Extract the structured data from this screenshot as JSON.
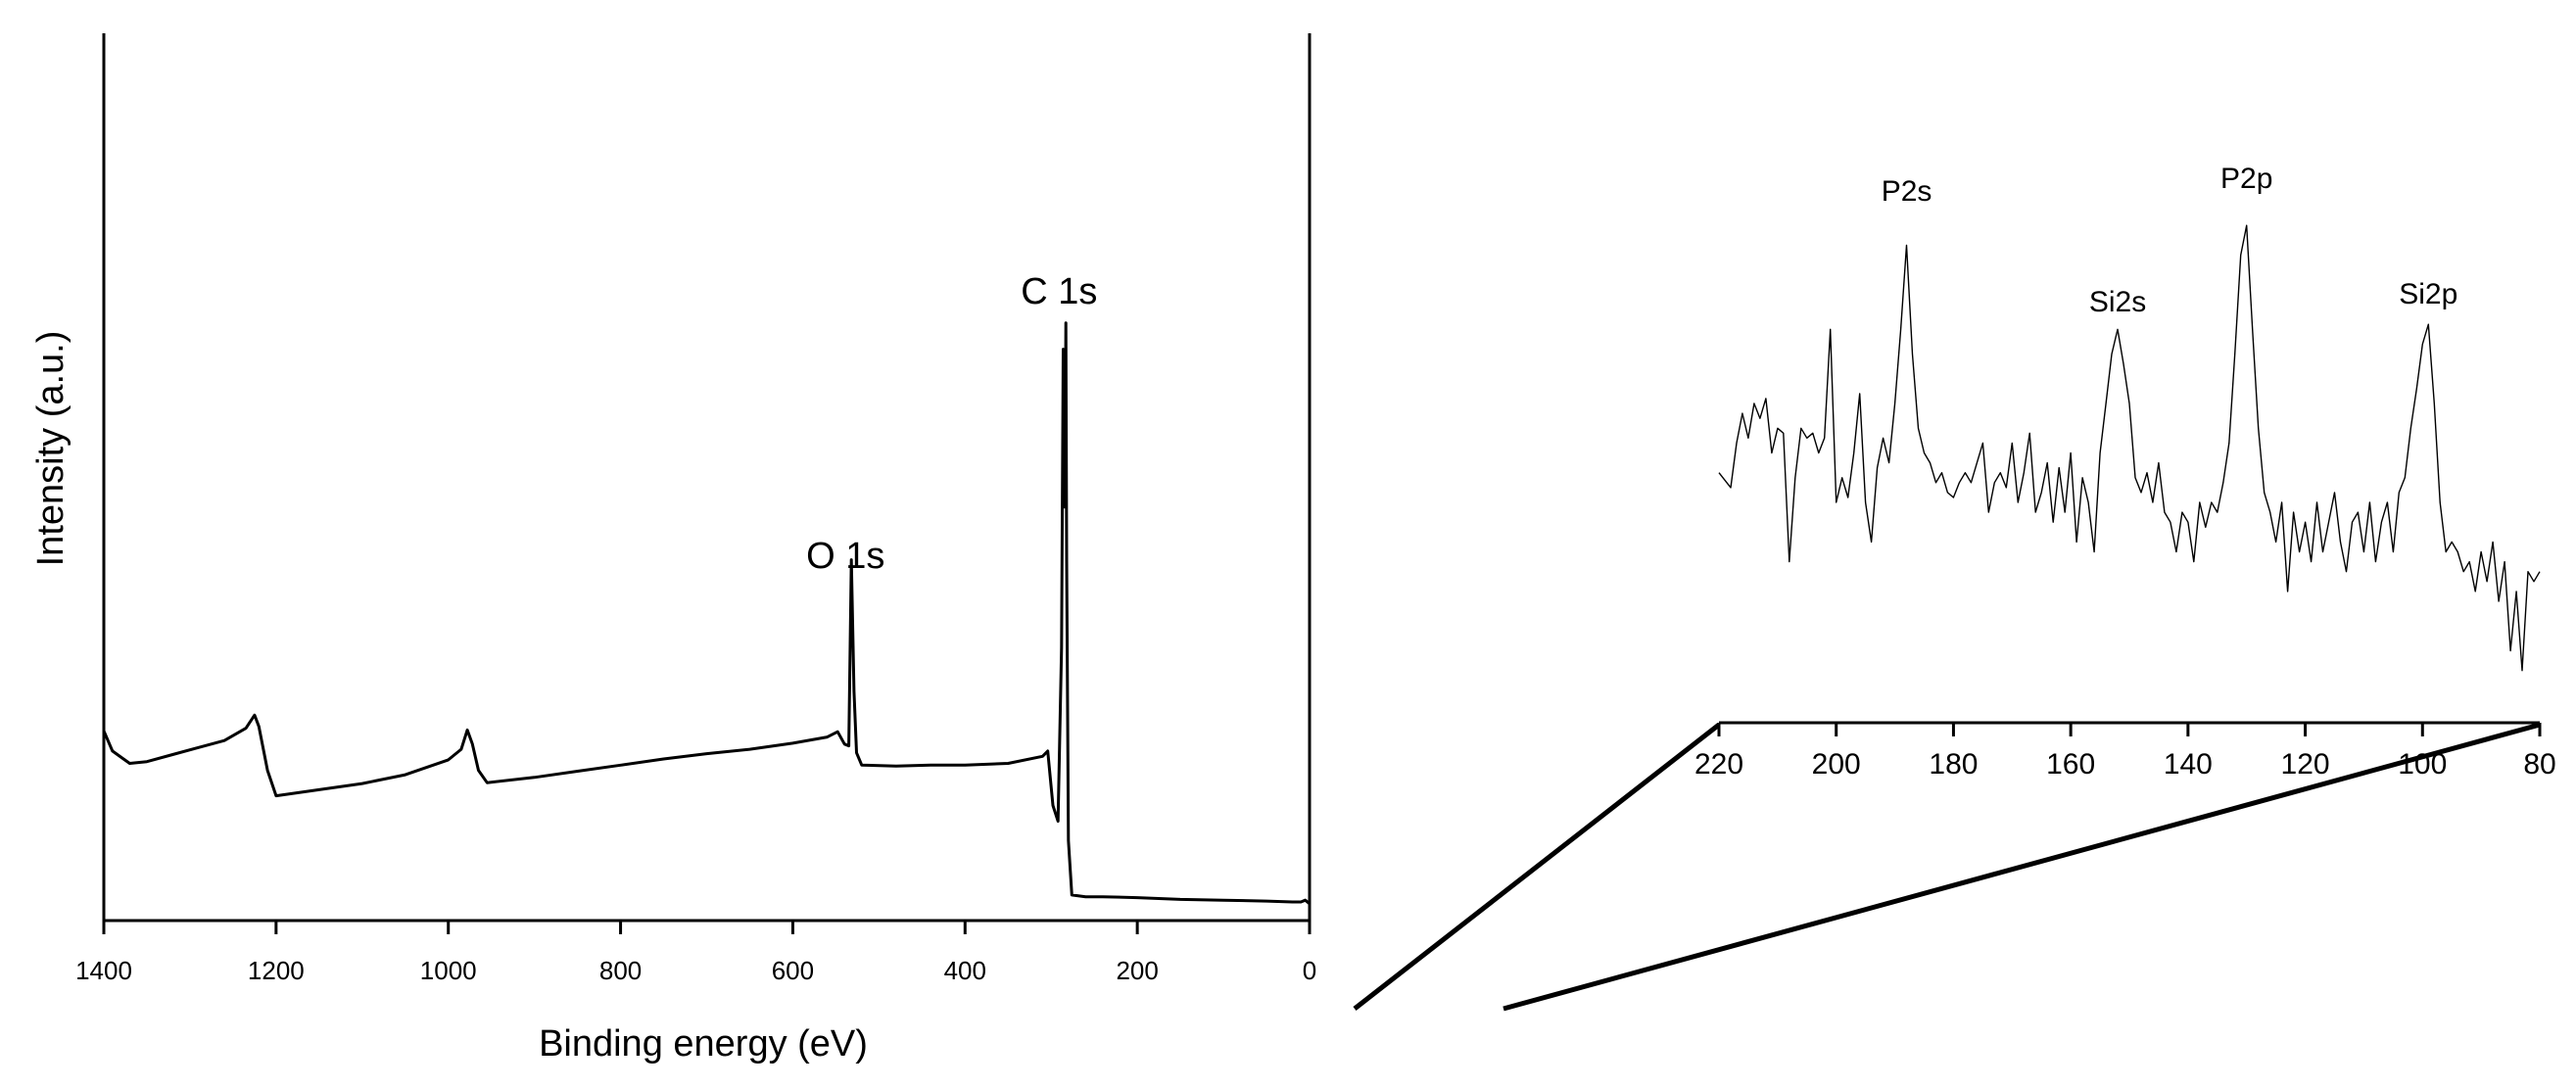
{
  "chart_data": [
    {
      "type": "line",
      "xlabel": "Binding energy (eV)",
      "ylabel": "Intensity (a.u.)",
      "xlim": [
        1400,
        0
      ],
      "ylim": [
        0,
        100
      ],
      "x_ticks": [
        "1400",
        "1200",
        "1000",
        "800",
        "600",
        "400",
        "200",
        "0"
      ],
      "grid": false,
      "series": [
        {
          "values": [
            [
              1400,
              20.5
            ],
            [
              1390,
              18.2
            ],
            [
              1370,
              16.8
            ],
            [
              1350,
              17.0
            ],
            [
              1320,
              17.8
            ],
            [
              1290,
              18.6
            ],
            [
              1260,
              19.4
            ],
            [
              1235,
              20.8
            ],
            [
              1225,
              22.3
            ],
            [
              1220,
              21.0
            ],
            [
              1210,
              16.0
            ],
            [
              1200,
              13.1
            ],
            [
              1150,
              13.8
            ],
            [
              1100,
              14.5
            ],
            [
              1050,
              15.5
            ],
            [
              1000,
              17.2
            ],
            [
              985,
              18.4
            ],
            [
              978,
              20.6
            ],
            [
              972,
              19.0
            ],
            [
              965,
              16.0
            ],
            [
              955,
              14.6
            ],
            [
              900,
              15.2
            ],
            [
              850,
              15.9
            ],
            [
              800,
              16.6
            ],
            [
              750,
              17.3
            ],
            [
              700,
              17.9
            ],
            [
              650,
              18.4
            ],
            [
              600,
              19.1
            ],
            [
              560,
              19.8
            ],
            [
              548,
              20.4
            ],
            [
              540,
              19.0
            ],
            [
              535,
              18.8
            ],
            [
              532,
              40.0
            ],
            [
              529,
              25.0
            ],
            [
              526,
              18.0
            ],
            [
              520,
              16.6
            ],
            [
              480,
              16.5
            ],
            [
              440,
              16.6
            ],
            [
              400,
              16.6
            ],
            [
              350,
              16.8
            ],
            [
              310,
              17.6
            ],
            [
              304,
              18.2
            ],
            [
              298,
              12.0
            ],
            [
              292,
              10.2
            ],
            [
              288,
              30.0
            ],
            [
              286,
              64.0
            ],
            [
              284,
              46.0
            ],
            [
              283,
              67.0
            ],
            [
              282,
              40.0
            ],
            [
              280,
              8.0
            ],
            [
              276,
              1.8
            ],
            [
              260,
              1.6
            ],
            [
              240,
              1.6
            ],
            [
              200,
              1.5
            ],
            [
              150,
              1.3
            ],
            [
              100,
              1.2
            ],
            [
              50,
              1.1
            ],
            [
              20,
              1.0
            ],
            [
              10,
              1.0
            ],
            [
              5,
              1.2
            ],
            [
              0,
              0.8
            ]
          ]
        }
      ],
      "annotations": [
        {
          "text": "O 1s",
          "x": 532
        },
        {
          "text": "C 1s",
          "x": 284
        }
      ]
    },
    {
      "type": "line",
      "xlim": [
        220,
        80
      ],
      "x_ticks": [
        "220",
        "200",
        "180",
        "160",
        "140",
        "120",
        "100",
        "80"
      ],
      "ylim": [
        0,
        100
      ],
      "grid": false,
      "series": [
        {
          "values": [
            [
              220,
              46
            ],
            [
              218,
              43
            ],
            [
              217,
              52
            ],
            [
              216,
              58
            ],
            [
              215,
              53
            ],
            [
              214,
              60
            ],
            [
              213,
              57
            ],
            [
              212,
              61
            ],
            [
              211,
              50
            ],
            [
              210,
              55
            ],
            [
              209,
              54
            ],
            [
              208,
              28
            ],
            [
              207,
              45
            ],
            [
              206,
              55
            ],
            [
              205,
              53
            ],
            [
              204,
              54
            ],
            [
              203,
              50
            ],
            [
              202,
              53
            ],
            [
              201,
              75
            ],
            [
              200,
              40
            ],
            [
              199,
              45
            ],
            [
              198,
              41
            ],
            [
              197,
              50
            ],
            [
              196,
              62
            ],
            [
              195,
              40
            ],
            [
              194,
              32
            ],
            [
              193,
              47
            ],
            [
              192,
              53
            ],
            [
              191,
              48
            ],
            [
              190,
              60
            ],
            [
              189,
              75
            ],
            [
              188,
              92
            ],
            [
              187,
              70
            ],
            [
              186,
              55
            ],
            [
              185,
              50
            ],
            [
              184,
              48
            ],
            [
              183,
              44
            ],
            [
              182,
              46
            ],
            [
              181,
              42
            ],
            [
              180,
              41
            ],
            [
              179,
              44
            ],
            [
              178,
              46
            ],
            [
              177,
              44
            ],
            [
              176,
              48
            ],
            [
              175,
              52
            ],
            [
              174,
              38
            ],
            [
              173,
              44
            ],
            [
              172,
              46
            ],
            [
              171,
              43
            ],
            [
              170,
              52
            ],
            [
              169,
              40
            ],
            [
              168,
              46
            ],
            [
              167,
              54
            ],
            [
              166,
              38
            ],
            [
              165,
              42
            ],
            [
              164,
              48
            ],
            [
              163,
              36
            ],
            [
              162,
              47
            ],
            [
              161,
              38
            ],
            [
              160,
              50
            ],
            [
              159,
              32
            ],
            [
              158,
              45
            ],
            [
              157,
              40
            ],
            [
              156,
              30
            ],
            [
              155,
              50
            ],
            [
              154,
              60
            ],
            [
              153,
              70
            ],
            [
              152,
              75
            ],
            [
              151,
              68
            ],
            [
              150,
              60
            ],
            [
              149,
              45
            ],
            [
              148,
              42
            ],
            [
              147,
              46
            ],
            [
              146,
              40
            ],
            [
              145,
              48
            ],
            [
              144,
              38
            ],
            [
              143,
              36
            ],
            [
              142,
              30
            ],
            [
              141,
              38
            ],
            [
              140,
              36
            ],
            [
              139,
              28
            ],
            [
              138,
              40
            ],
            [
              137,
              35
            ],
            [
              136,
              40
            ],
            [
              135,
              38
            ],
            [
              134,
              44
            ],
            [
              133,
              52
            ],
            [
              132,
              70
            ],
            [
              131,
              90
            ],
            [
              130,
              96
            ],
            [
              129,
              75
            ],
            [
              128,
              55
            ],
            [
              127,
              42
            ],
            [
              126,
              38
            ],
            [
              125,
              32
            ],
            [
              124,
              40
            ],
            [
              123,
              22
            ],
            [
              122,
              38
            ],
            [
              121,
              30
            ],
            [
              120,
              36
            ],
            [
              119,
              28
            ],
            [
              118,
              40
            ],
            [
              117,
              30
            ],
            [
              116,
              36
            ],
            [
              115,
              42
            ],
            [
              114,
              32
            ],
            [
              113,
              26
            ],
            [
              112,
              36
            ],
            [
              111,
              38
            ],
            [
              110,
              30
            ],
            [
              109,
              40
            ],
            [
              108,
              28
            ],
            [
              107,
              36
            ],
            [
              106,
              40
            ],
            [
              105,
              30
            ],
            [
              104,
              42
            ],
            [
              103,
              45
            ],
            [
              102,
              55
            ],
            [
              101,
              63
            ],
            [
              100,
              72
            ],
            [
              99,
              76
            ],
            [
              98,
              60
            ],
            [
              97,
              40
            ],
            [
              96,
              30
            ],
            [
              95,
              32
            ],
            [
              94,
              30
            ],
            [
              93,
              26
            ],
            [
              92,
              28
            ],
            [
              91,
              22
            ],
            [
              90,
              30
            ],
            [
              89,
              24
            ],
            [
              88,
              32
            ],
            [
              87,
              20
            ],
            [
              86,
              28
            ],
            [
              85,
              10
            ],
            [
              84,
              22
            ],
            [
              83,
              6
            ],
            [
              82,
              26
            ],
            [
              81,
              24
            ],
            [
              80,
              26
            ]
          ]
        }
      ],
      "annotations": [
        {
          "text": "P2s",
          "x": 188
        },
        {
          "text": "Si2s",
          "x": 152
        },
        {
          "text": "P2p",
          "x": 130
        },
        {
          "text": "Si2p",
          "x": 99
        }
      ]
    }
  ]
}
